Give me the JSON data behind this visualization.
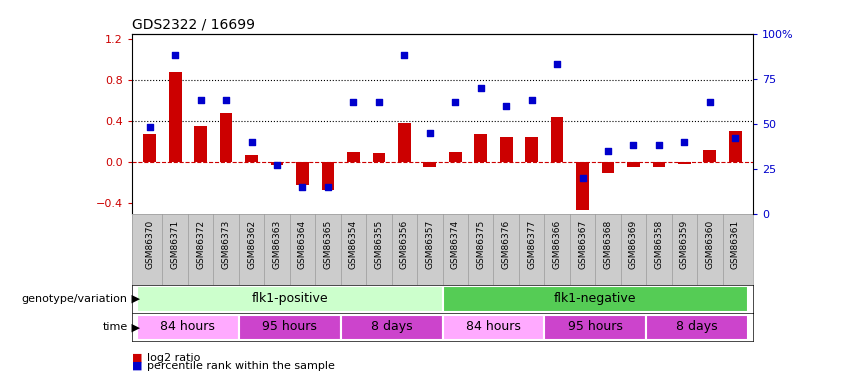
{
  "title": "GDS2322 / 16699",
  "samples": [
    "GSM86370",
    "GSM86371",
    "GSM86372",
    "GSM86373",
    "GSM86362",
    "GSM86363",
    "GSM86364",
    "GSM86365",
    "GSM86354",
    "GSM86355",
    "GSM86356",
    "GSM86357",
    "GSM86374",
    "GSM86375",
    "GSM86376",
    "GSM86377",
    "GSM86366",
    "GSM86367",
    "GSM86368",
    "GSM86369",
    "GSM86358",
    "GSM86359",
    "GSM86360",
    "GSM86361"
  ],
  "log2_ratio": [
    0.28,
    0.88,
    0.35,
    0.48,
    0.07,
    -0.03,
    -0.22,
    -0.27,
    0.1,
    0.09,
    0.38,
    -0.05,
    0.1,
    0.28,
    0.25,
    0.25,
    0.44,
    -0.46,
    -0.1,
    -0.05,
    -0.05,
    -0.02,
    0.12,
    0.3
  ],
  "percentile_rank": [
    48,
    88,
    63,
    63,
    40,
    27,
    15,
    15,
    62,
    62,
    88,
    45,
    62,
    70,
    60,
    63,
    83,
    20,
    35,
    38,
    38,
    40,
    62,
    42
  ],
  "bar_color": "#cc0000",
  "scatter_color": "#0000cc",
  "zero_line_color": "#cc0000",
  "hline_color": "#000000",
  "ylim_left": [
    -0.5,
    1.25
  ],
  "ylim_right": [
    0,
    100
  ],
  "yticks_left": [
    -0.4,
    0.0,
    0.4,
    0.8,
    1.2
  ],
  "yticks_right": [
    0,
    25,
    50,
    75,
    100
  ],
  "hlines": [
    0.4,
    0.8
  ],
  "geno_colors": [
    "#ccffcc",
    "#55cc55"
  ],
  "geno_labels": [
    "flk1-positive",
    "flk1-negative"
  ],
  "geno_ranges": [
    [
      0,
      11
    ],
    [
      12,
      23
    ]
  ],
  "time_ranges": [
    [
      0,
      3
    ],
    [
      4,
      7
    ],
    [
      8,
      11
    ],
    [
      12,
      15
    ],
    [
      16,
      19
    ],
    [
      20,
      23
    ]
  ],
  "time_labels": [
    "84 hours",
    "95 hours",
    "8 days",
    "84 hours",
    "95 hours",
    "8 days"
  ],
  "time_colors": [
    "#ffaaff",
    "#cc44cc",
    "#cc44cc",
    "#ffaaff",
    "#cc44cc",
    "#cc44cc"
  ],
  "legend_red": "log2 ratio",
  "legend_blue": "percentile rank within the sample",
  "genotype_label": "genotype/variation",
  "time_label": "time",
  "bar_width": 0.5,
  "tick_label_bg": "#cccccc"
}
